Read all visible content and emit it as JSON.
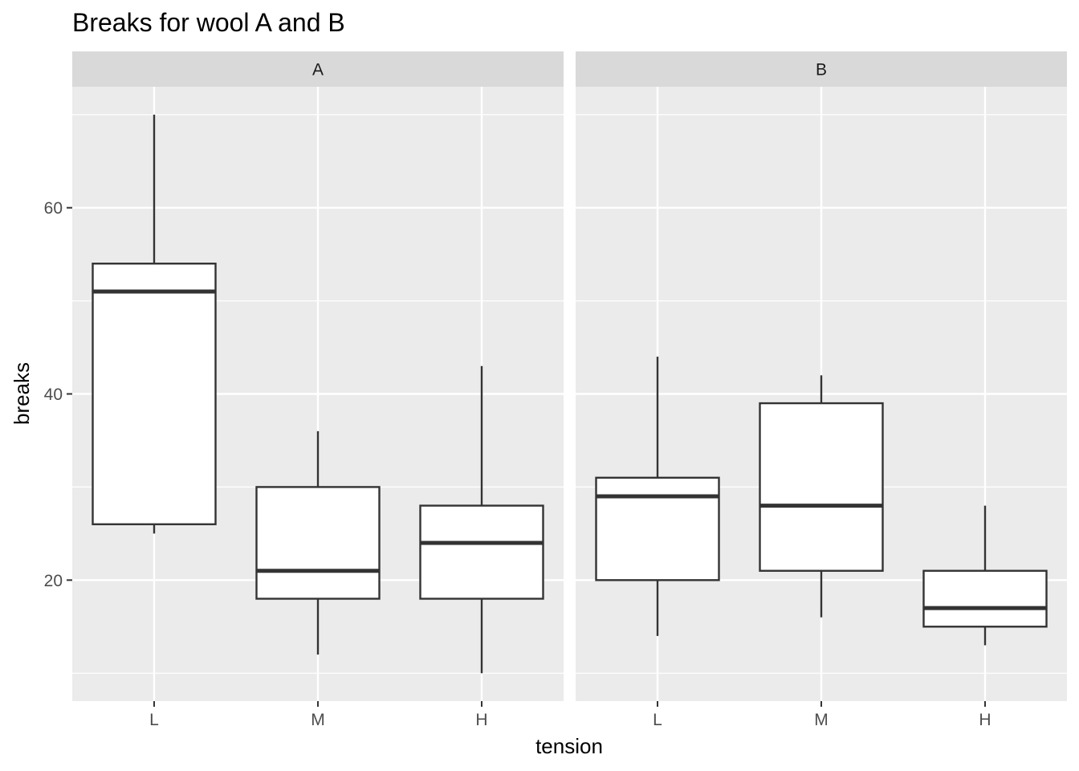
{
  "chart_data": {
    "type": "boxplot",
    "title": "Breaks for wool A and B",
    "xlabel": "tension",
    "ylabel": "breaks",
    "categories": [
      "L",
      "M",
      "H"
    ],
    "ylim": [
      7,
      73
    ],
    "yticks": [
      20,
      40,
      60
    ],
    "grid": true,
    "legend": "none",
    "colors": {
      "panel_bg": "#EBEBEB",
      "strip_bg": "#D9D9D9",
      "grid": "#FFFFFF",
      "box_fill": "#FFFFFF",
      "box_stroke": "#333333"
    },
    "facets": [
      {
        "name": "A",
        "boxes": [
          {
            "x": "L",
            "lower_whisker": 25,
            "q1": 26,
            "median": 51,
            "q3": 54,
            "upper_whisker": 70
          },
          {
            "x": "M",
            "lower_whisker": 12,
            "q1": 18,
            "median": 21,
            "q3": 30,
            "upper_whisker": 36
          },
          {
            "x": "H",
            "lower_whisker": 10,
            "q1": 18,
            "median": 24,
            "q3": 28,
            "upper_whisker": 43
          }
        ]
      },
      {
        "name": "B",
        "boxes": [
          {
            "x": "L",
            "lower_whisker": 14,
            "q1": 20,
            "median": 29,
            "q3": 31,
            "upper_whisker": 44
          },
          {
            "x": "M",
            "lower_whisker": 16,
            "q1": 21,
            "median": 28,
            "q3": 39,
            "upper_whisker": 42
          },
          {
            "x": "H",
            "lower_whisker": 13,
            "q1": 15,
            "median": 17,
            "q3": 21,
            "upper_whisker": 28
          }
        ]
      }
    ]
  }
}
